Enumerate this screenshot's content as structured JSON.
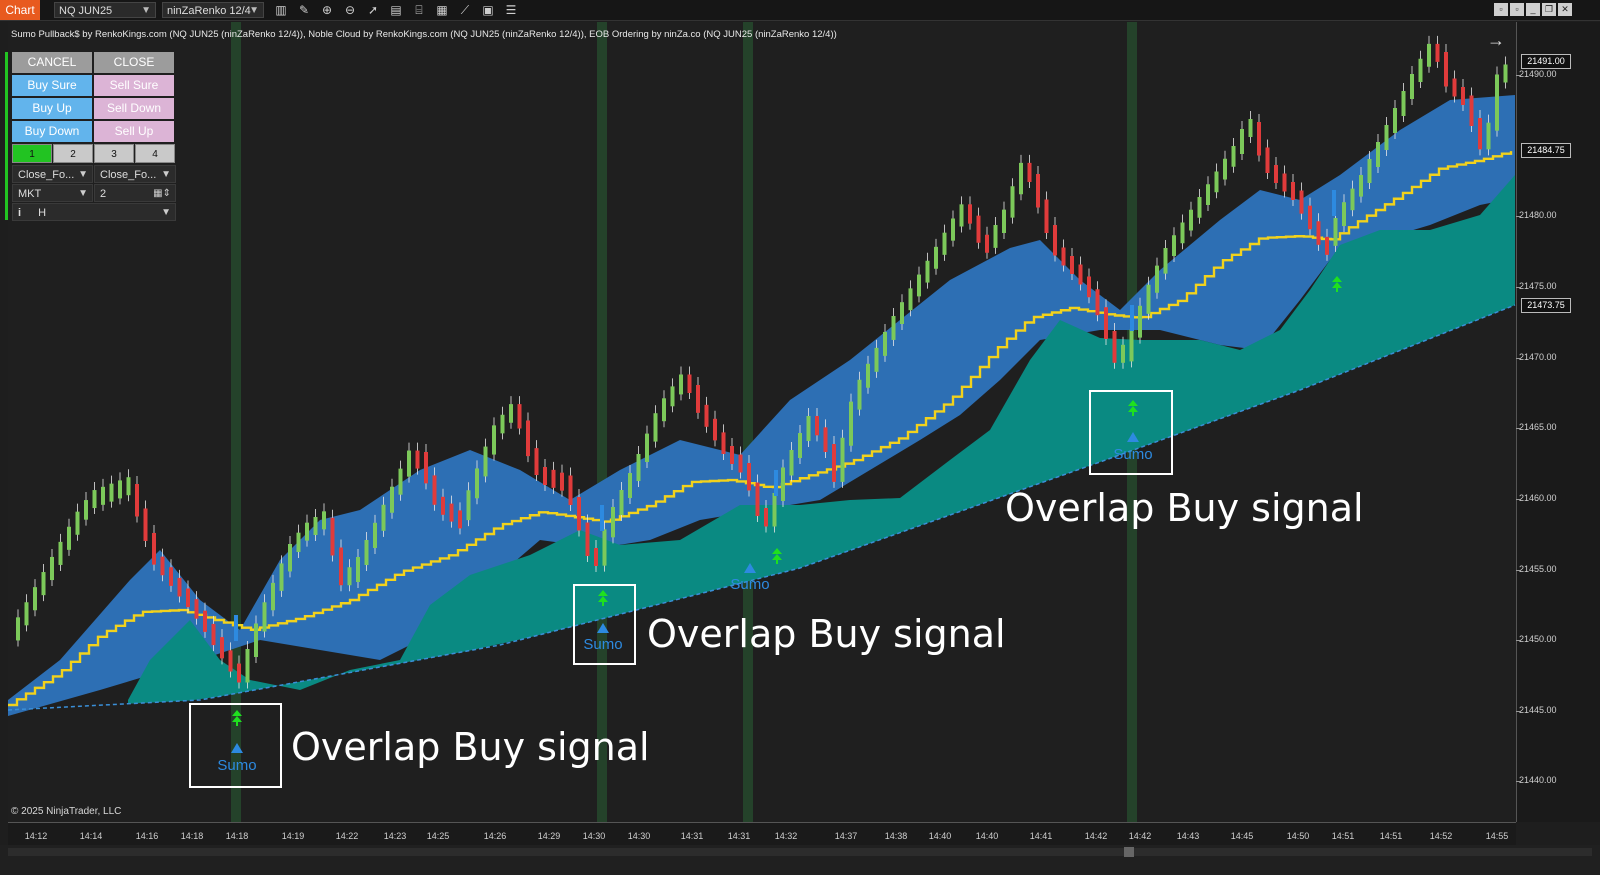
{
  "toolbar": {
    "tab_label": "Chart",
    "instrument": "NQ JUN25",
    "bar_type": "ninZaRenko 12/4",
    "icons": [
      "bar-type-icon",
      "pencil-icon",
      "zoom-in-icon",
      "zoom-out-icon",
      "cursor-icon",
      "template-icon",
      "chart-trader-icon",
      "data-box-icon",
      "indicators-icon",
      "strategies-icon",
      "properties-icon"
    ]
  },
  "indicator_label": "Sumo Pullback$ by RenkoKings.com (NQ JUN25 (ninZaRenko 12/4)), Noble Cloud by RenkoKings.com (NQ JUN25 (ninZaRenko 12/4)), EOB Ordering by ninZa.co (NQ JUN25 (ninZaRenko 12/4))",
  "order_panel": {
    "cancel": "CANCEL",
    "close": "CLOSE",
    "buy_sure": "Buy Sure",
    "sell_sure": "Sell Sure",
    "buy_up": "Buy Up",
    "sell_down": "Sell Down",
    "buy_down": "Buy Down",
    "sell_up": "Sell Up",
    "presets": [
      "1",
      "2",
      "3",
      "4"
    ],
    "close_mode_left": "Close_Fo...",
    "close_mode_right": "Close_Fo...",
    "order_type": "MKT",
    "quantity": "2",
    "info_symbol": "i",
    "mode": "H"
  },
  "copyright": "© 2025 NinjaTrader, LLC",
  "f_button": "F",
  "price_axis": {
    "ticks": [
      "21490.00",
      "21480.00",
      "21475.00",
      "21470.00",
      "21465.00",
      "21460.00",
      "21455.00",
      "21450.00",
      "21445.00",
      "21440.00"
    ],
    "badges": [
      "21491.00",
      "21484.75",
      "21473.75"
    ]
  },
  "time_axis": {
    "labels": [
      "14:12",
      "14:14",
      "14:16",
      "14:18",
      "14:18",
      "14:19",
      "14:22",
      "14:23",
      "14:25",
      "14:26",
      "14:29",
      "14:30",
      "14:30",
      "14:31",
      "14:31",
      "14:32",
      "14:37",
      "14:38",
      "14:40",
      "14:40",
      "14:41",
      "14:42",
      "14:42",
      "14:43",
      "14:45",
      "14:50",
      "14:51",
      "14:51",
      "14:52",
      "14:55"
    ]
  },
  "annotations": {
    "signal_text": "Overlap Buy signal",
    "sumo_text": "Sumo"
  },
  "colors": {
    "bull_candle": "#7cc95a",
    "bear_candle": "#e03b3b",
    "cloud_blue": "#2d6fb4",
    "cloud_teal": "#0a8a82",
    "trend_line": "#f2d21c",
    "signal_band": "#24422a",
    "baseline": "#3a8fd8"
  }
}
